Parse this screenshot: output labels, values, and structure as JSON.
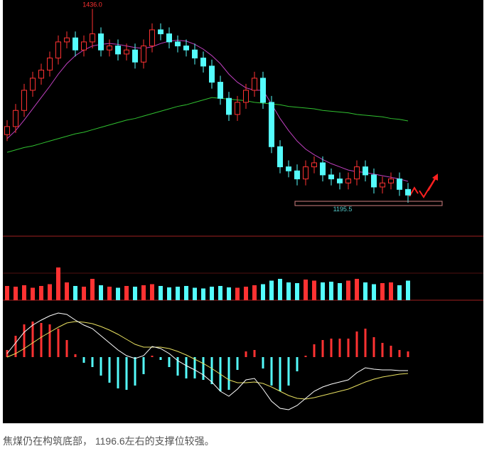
{
  "chart_data": [
    {
      "type": "candlestick",
      "open": [
        1280,
        1290,
        1310,
        1335,
        1350,
        1360,
        1375,
        1395,
        1400,
        1385,
        1395,
        1405,
        1385,
        1390,
        1380,
        1385,
        1370,
        1390,
        1410,
        1405,
        1395,
        1390,
        1385,
        1375,
        1365,
        1345,
        1325,
        1305,
        1320,
        1335,
        1350,
        1320,
        1265,
        1240,
        1235,
        1225,
        1240,
        1245,
        1230,
        1225,
        1220,
        1225,
        1240,
        1230,
        1215,
        1220,
        1225,
        1212
      ],
      "high": [
        1298,
        1318,
        1343,
        1358,
        1368,
        1383,
        1403,
        1408,
        1408,
        1403,
        1436,
        1413,
        1398,
        1398,
        1393,
        1393,
        1398,
        1418,
        1418,
        1413,
        1403,
        1398,
        1393,
        1383,
        1373,
        1353,
        1333,
        1328,
        1343,
        1358,
        1358,
        1328,
        1273,
        1248,
        1243,
        1248,
        1253,
        1253,
        1238,
        1233,
        1233,
        1248,
        1248,
        1238,
        1228,
        1233,
        1233,
        1220
      ],
      "low": [
        1272,
        1282,
        1302,
        1327,
        1342,
        1352,
        1367,
        1387,
        1377,
        1377,
        1387,
        1377,
        1377,
        1372,
        1372,
        1362,
        1362,
        1382,
        1397,
        1387,
        1382,
        1377,
        1367,
        1357,
        1337,
        1317,
        1297,
        1297,
        1312,
        1327,
        1312,
        1257,
        1232,
        1227,
        1217,
        1217,
        1232,
        1222,
        1217,
        1212,
        1212,
        1217,
        1222,
        1207,
        1207,
        1212,
        1204,
        1195.5
      ],
      "close": [
        1290,
        1310,
        1335,
        1350,
        1360,
        1375,
        1395,
        1400,
        1385,
        1395,
        1405,
        1385,
        1390,
        1380,
        1385,
        1370,
        1390,
        1410,
        1405,
        1395,
        1390,
        1385,
        1375,
        1365,
        1345,
        1325,
        1305,
        1320,
        1335,
        1350,
        1320,
        1265,
        1240,
        1235,
        1225,
        1240,
        1245,
        1230,
        1225,
        1220,
        1225,
        1240,
        1230,
        1215,
        1220,
        1225,
        1212,
        1205
      ],
      "colors": {
        "up": "#ff3232",
        "down": "#54fcfc"
      },
      "moving_averages": [
        {
          "color": "#c040c0",
          "values": [
            1275,
            1285,
            1298,
            1312,
            1326,
            1340,
            1355,
            1368,
            1378,
            1385,
            1390,
            1392,
            1393,
            1392,
            1390,
            1388,
            1387,
            1389,
            1393,
            1396,
            1397,
            1396,
            1392,
            1386,
            1378,
            1368,
            1355,
            1345,
            1338,
            1335,
            1335,
            1318,
            1300,
            1285,
            1272,
            1262,
            1255,
            1249,
            1244,
            1240,
            1236,
            1234,
            1233,
            1231,
            1229,
            1227,
            1225,
            1222
          ]
        },
        {
          "color": "#30c030",
          "values": [
            1258,
            1261,
            1264,
            1266,
            1269,
            1272,
            1275,
            1278,
            1281,
            1283,
            1286,
            1289,
            1292,
            1295,
            1298,
            1300,
            1303,
            1306,
            1309,
            1312,
            1315,
            1317,
            1320,
            1323,
            1326,
            1325,
            1324,
            1323,
            1322,
            1320,
            1319,
            1318,
            1317,
            1315,
            1314,
            1313,
            1312,
            1310,
            1309,
            1308,
            1307,
            1305,
            1304,
            1303,
            1302,
            1300,
            1299,
            1297
          ]
        }
      ],
      "annotations": [
        {
          "value": 1436,
          "label": "1436.0",
          "color": "#ff3232"
        },
        {
          "value": 1195.5,
          "label": "1195.5",
          "color": "#54c8c8"
        }
      ],
      "ylim": [
        1154,
        1447
      ]
    },
    {
      "type": "bar",
      "values": [
        40,
        38,
        42,
        35,
        40,
        45,
        92,
        50,
        40,
        38,
        60,
        42,
        38,
        35,
        40,
        38,
        42,
        45,
        40,
        36,
        38,
        40,
        35,
        33,
        38,
        40,
        36,
        35,
        38,
        42,
        45,
        55,
        60,
        50,
        48,
        58,
        55,
        50,
        52,
        48,
        55,
        60,
        50,
        45,
        48,
        50,
        42,
        55
      ],
      "ylim": [
        0,
        100
      ]
    },
    {
      "type": "macd",
      "dif": [
        5,
        20,
        35,
        45,
        52,
        58,
        62,
        60,
        52,
        45,
        40,
        30,
        20,
        10,
        2,
        -2,
        2,
        15,
        12,
        5,
        -5,
        -12,
        -18,
        -25,
        -35,
        -48,
        -55,
        -45,
        -32,
        -30,
        -45,
        -62,
        -72,
        -74,
        -68,
        -58,
        -48,
        -42,
        -38,
        -35,
        -32,
        -22,
        -15,
        -17,
        -18,
        -18,
        -19,
        -19
      ],
      "dea": [
        0,
        5,
        12,
        20,
        28,
        35,
        42,
        48,
        50,
        49,
        47,
        43,
        38,
        32,
        25,
        18,
        14,
        14,
        14,
        12,
        8,
        3,
        -3,
        -9,
        -16,
        -24,
        -32,
        -36,
        -36,
        -35,
        -37,
        -42,
        -48,
        -54,
        -58,
        -59,
        -57,
        -54,
        -51,
        -48,
        -45,
        -40,
        -35,
        -31,
        -28,
        -26,
        -24,
        -23
      ],
      "histogram": [
        10,
        30,
        46,
        50,
        48,
        46,
        40,
        24,
        4,
        -8,
        -14,
        -26,
        -36,
        -44,
        -46,
        -40,
        -24,
        2,
        -4,
        -14,
        -26,
        -30,
        -30,
        -32,
        -38,
        -48,
        -46,
        -18,
        8,
        10,
        -16,
        -40,
        -48,
        -40,
        -20,
        2,
        18,
        24,
        26,
        26,
        26,
        36,
        40,
        28,
        20,
        16,
        10,
        8
      ],
      "colors": {
        "dif": "#ffffff",
        "dea": "#e8e060",
        "up": "#ff3232",
        "down": "#54fcfc"
      },
      "ylim": [
        -80,
        80
      ]
    }
  ],
  "caption": "焦煤仍在构筑底部， 1196.6左右的支撑位较强。"
}
